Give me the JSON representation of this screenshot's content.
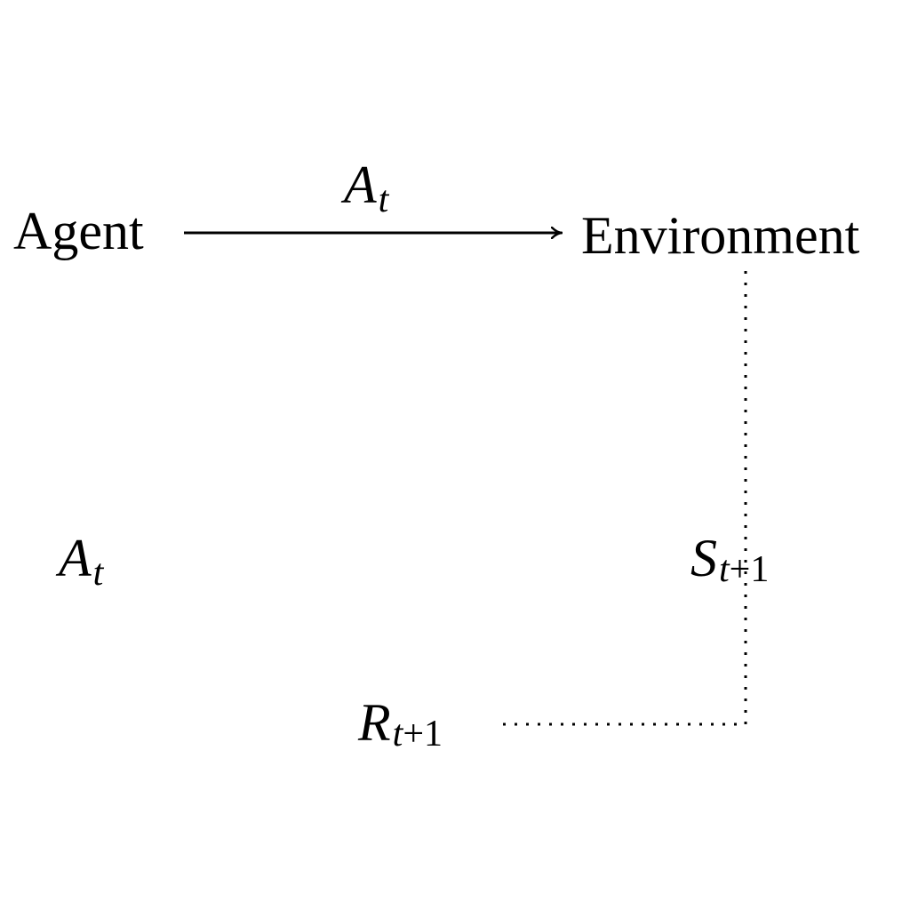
{
  "diagram": {
    "nodes": {
      "agent": "Agent",
      "environment": "Environment"
    },
    "edge_labels": {
      "action_top": {
        "main": "A",
        "sub": "t"
      },
      "action_left": {
        "main": "A",
        "sub": "t"
      },
      "state": {
        "main": "S",
        "sub_var": "t",
        "sub_rest": "+1"
      },
      "reward": {
        "main": "R",
        "sub_var": "t",
        "sub_rest": "+1"
      }
    },
    "colors": {
      "ink": "#000000",
      "background": "#ffffff"
    }
  }
}
